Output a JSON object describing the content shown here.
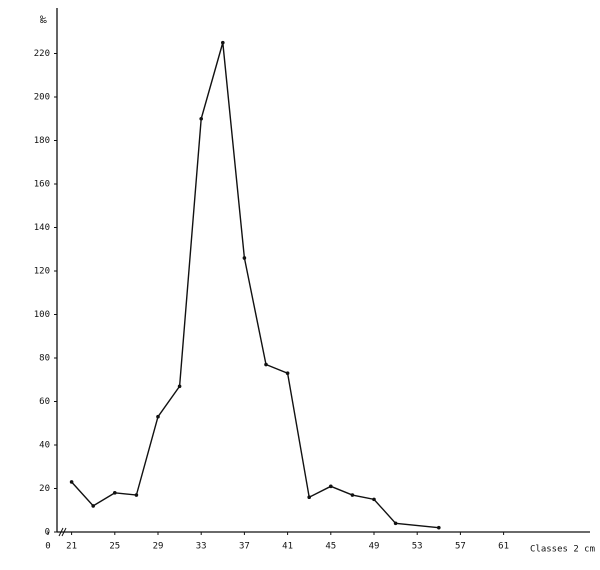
{
  "chart_data": {
    "type": "line",
    "y_label": "‰",
    "x_label": "Classes 2 cm",
    "x": [
      21,
      23,
      25,
      27,
      29,
      31,
      33,
      35,
      37,
      39,
      41,
      43,
      45,
      47,
      49,
      51,
      55
    ],
    "series": [
      {
        "color": "#111111",
        "values": [
          23,
          12,
          18,
          17,
          53,
          67,
          190,
          225,
          126,
          77,
          73,
          16,
          21,
          17,
          15,
          4,
          2
        ]
      }
    ],
    "xlim": [
      19,
      69
    ],
    "ylim": [
      0,
      240
    ],
    "xticks": [
      0,
      21,
      25,
      29,
      33,
      37,
      41,
      45,
      49,
      53,
      57,
      61
    ],
    "yticks": [
      0,
      20,
      40,
      60,
      80,
      100,
      120,
      140,
      160,
      180,
      200,
      220
    ],
    "axis_break": true
  }
}
